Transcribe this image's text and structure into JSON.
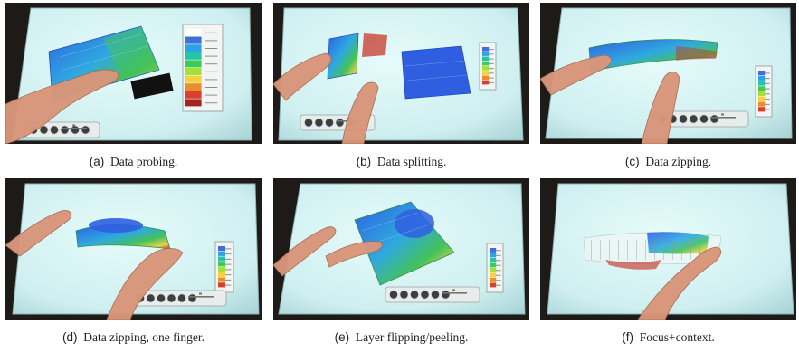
{
  "figure": {
    "panels": [
      {
        "id": "a",
        "label": "(a)",
        "caption": "Data probing.",
        "scene": "data-probing",
        "legend_colors": [
          "#ffffff",
          "#3f6fd8",
          "#2da3e6",
          "#24c4a8",
          "#3ccc56",
          "#a6de3a",
          "#f1d33a",
          "#ea8e2b",
          "#d6402d",
          "#a3241f"
        ]
      },
      {
        "id": "b",
        "label": "(b)",
        "caption": "Data splitting.",
        "scene": "data-splitting",
        "legend_colors": [
          "#3f6fd8",
          "#2da3e6",
          "#24c4a8",
          "#3ccc56",
          "#a6de3a",
          "#f1d33a",
          "#ea8e2b",
          "#d6402d"
        ]
      },
      {
        "id": "c",
        "label": "(c)",
        "caption": "Data zipping.",
        "scene": "data-zipping",
        "legend_colors": [
          "#3f6fd8",
          "#2da3e6",
          "#24c4a8",
          "#3ccc56",
          "#a6de3a",
          "#f1d33a",
          "#ea8e2b",
          "#d6402d"
        ]
      },
      {
        "id": "d",
        "label": "(d)",
        "caption": "Data zipping, one finger.",
        "scene": "data-zipping-one-finger",
        "legend_colors": [
          "#3f6fd8",
          "#2da3e6",
          "#24c4a8",
          "#3ccc56",
          "#a6de3a",
          "#f1d33a",
          "#ea8e2b",
          "#d6402d"
        ]
      },
      {
        "id": "e",
        "label": "(e)",
        "caption": "Layer flipping/peeling.",
        "scene": "layer-flipping",
        "legend_colors": [
          "#3f6fd8",
          "#2da3e6",
          "#24c4a8",
          "#3ccc56",
          "#a6de3a",
          "#f1d33a",
          "#ea8e2b",
          "#d6402d"
        ]
      },
      {
        "id": "f",
        "label": "(f)",
        "caption": "Focus+context.",
        "scene": "focus-context",
        "legend_colors": []
      }
    ],
    "colors": {
      "table_surface": "#cfeff0",
      "room_dark": "#1e1a17",
      "skin": "#d9967a",
      "data_blue": "#2f5fe0",
      "data_green": "#43c25a",
      "data_yellow": "#e2d34a",
      "data_red": "#c8382c"
    }
  }
}
